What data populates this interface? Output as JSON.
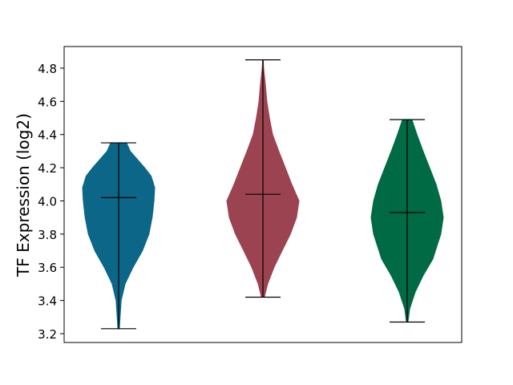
{
  "chart_data": {
    "type": "violin",
    "title": "",
    "xlabel": "",
    "ylabel": "TF Expression (log2)",
    "ylim": [
      3.15,
      4.93
    ],
    "yticks": [
      "3.2",
      "3.4",
      "3.6",
      "3.8",
      "4.0",
      "4.2",
      "4.4",
      "4.6",
      "4.8"
    ],
    "grid": false,
    "series": [
      {
        "color": "#0b6688",
        "min": 3.23,
        "max": 4.35,
        "median": 4.02,
        "density": [
          [
            3.23,
            0.02
          ],
          [
            3.3,
            0.04
          ],
          [
            3.4,
            0.07
          ],
          [
            3.5,
            0.18
          ],
          [
            3.6,
            0.4
          ],
          [
            3.7,
            0.66
          ],
          [
            3.8,
            0.84
          ],
          [
            3.9,
            0.93
          ],
          [
            4.0,
            0.98
          ],
          [
            4.08,
            1.0
          ],
          [
            4.15,
            0.9
          ],
          [
            4.2,
            0.72
          ],
          [
            4.3,
            0.32
          ],
          [
            4.35,
            0.22
          ]
        ]
      },
      {
        "color": "#9b4350",
        "min": 3.42,
        "max": 4.85,
        "median": 4.04,
        "density": [
          [
            3.42,
            0.04
          ],
          [
            3.5,
            0.13
          ],
          [
            3.6,
            0.31
          ],
          [
            3.7,
            0.53
          ],
          [
            3.8,
            0.76
          ],
          [
            3.9,
            0.93
          ],
          [
            4.0,
            1.0
          ],
          [
            4.1,
            0.8
          ],
          [
            4.2,
            0.62
          ],
          [
            4.3,
            0.44
          ],
          [
            4.4,
            0.27
          ],
          [
            4.5,
            0.18
          ],
          [
            4.6,
            0.11
          ],
          [
            4.7,
            0.07
          ],
          [
            4.8,
            0.02
          ],
          [
            4.85,
            0.01
          ]
        ]
      },
      {
        "color": "#006a44",
        "min": 3.27,
        "max": 4.49,
        "median": 3.93,
        "density": [
          [
            3.27,
            0.02
          ],
          [
            3.35,
            0.07
          ],
          [
            3.45,
            0.22
          ],
          [
            3.55,
            0.44
          ],
          [
            3.65,
            0.71
          ],
          [
            3.8,
            0.93
          ],
          [
            3.9,
            1.0
          ],
          [
            4.0,
            0.93
          ],
          [
            4.1,
            0.8
          ],
          [
            4.2,
            0.62
          ],
          [
            4.3,
            0.44
          ],
          [
            4.4,
            0.27
          ],
          [
            4.49,
            0.13
          ]
        ]
      }
    ]
  }
}
